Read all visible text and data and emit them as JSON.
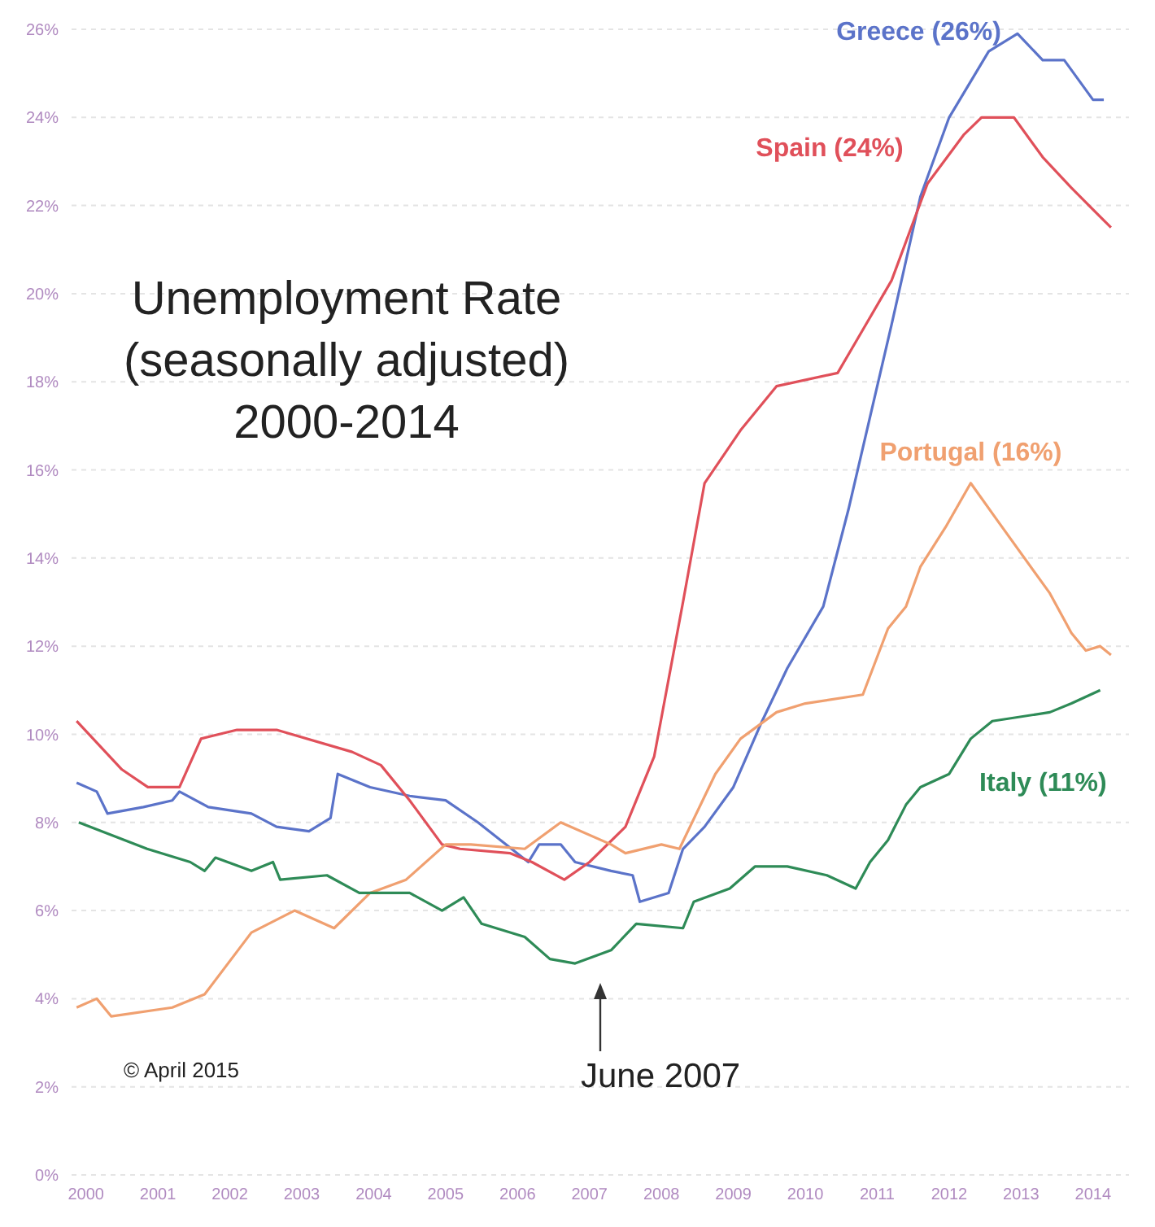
{
  "chart_data": {
    "type": "line",
    "title": "Unemployment Rate\n(seasonally adjusted)\n2000-2014",
    "xlim": [
      1999.8,
      2014.5
    ],
    "xticks": [
      2000,
      2001,
      2002,
      2003,
      2004,
      2005,
      2006,
      2007,
      2008,
      2009,
      2010,
      2011,
      2012,
      2013,
      2014
    ],
    "ylim": [
      0,
      26
    ],
    "yticks": [
      {
        "value": 0,
        "label": "0%"
      },
      {
        "value": 2,
        "label": "2%"
      },
      {
        "value": 4,
        "label": "4%"
      },
      {
        "value": 6,
        "label": "6%"
      },
      {
        "value": 8,
        "label": "8%"
      },
      {
        "value": 10,
        "label": "10%"
      },
      {
        "value": 12,
        "label": "12%"
      },
      {
        "value": 14,
        "label": "14%"
      },
      {
        "value": 16,
        "label": "16%"
      },
      {
        "value": 18,
        "label": "18%"
      },
      {
        "value": 20,
        "label": "20%"
      },
      {
        "value": 22,
        "label": "22%"
      },
      {
        "value": 24,
        "label": "24%"
      },
      {
        "value": 26,
        "label": "26%"
      }
    ],
    "grid": "y",
    "marker": "none",
    "line_style": "solid",
    "annotations": [
      "June 2007",
      "© April 2015"
    ],
    "series": [
      {
        "name": "Greece (26%)",
        "color": "#5b73c9",
        "x": [
          1999.87,
          2000.15,
          2000.3,
          2000.8,
          2001.2,
          2001.3,
          2001.7,
          2002.3,
          2002.65,
          2003.1,
          2003.4,
          2003.5,
          2003.95,
          2004.5,
          2005.0,
          2005.45,
          2006.15,
          2006.3,
          2006.6,
          2006.8,
          2007.3,
          2007.6,
          2007.7,
          2008.1,
          2008.3,
          2008.6,
          2009.0,
          2009.4,
          2009.75,
          2010.25,
          2010.6,
          2011.2,
          2011.6,
          2012.0,
          2012.55,
          2012.95,
          2013.3,
          2013.6,
          2014.0,
          2014.15
        ],
        "values": [
          8.9,
          8.7,
          8.2,
          8.35,
          8.5,
          8.7,
          8.35,
          8.2,
          7.9,
          7.8,
          8.1,
          9.1,
          8.8,
          8.6,
          8.5,
          8.0,
          7.1,
          7.5,
          7.5,
          7.1,
          6.9,
          6.8,
          6.2,
          6.4,
          7.4,
          7.9,
          8.8,
          10.3,
          11.5,
          12.9,
          15.1,
          19.3,
          22.2,
          24.0,
          25.5,
          25.9,
          25.3,
          25.3,
          24.4,
          24.4
        ]
      },
      {
        "name": "Spain (24%)",
        "color": "#e0505a",
        "x": [
          1999.87,
          2000.5,
          2000.86,
          2001.3,
          2001.6,
          2002.1,
          2002.65,
          2003.7,
          2004.1,
          2004.5,
          2004.95,
          2005.2,
          2005.9,
          2006.2,
          2006.65,
          2007.0,
          2007.5,
          2007.9,
          2008.3,
          2008.6,
          2009.1,
          2009.6,
          2010.45,
          2010.7,
          2011.2,
          2011.7,
          2012.2,
          2012.45,
          2012.9,
          2013.3,
          2013.7,
          2014.25
        ],
        "values": [
          10.3,
          9.2,
          8.8,
          8.8,
          9.9,
          10.1,
          10.1,
          9.6,
          9.3,
          8.5,
          7.5,
          7.4,
          7.3,
          7.1,
          6.7,
          7.1,
          7.9,
          9.5,
          13.0,
          15.7,
          16.9,
          17.9,
          18.2,
          18.9,
          20.3,
          22.5,
          23.6,
          24.0,
          24.0,
          23.1,
          22.4,
          21.5
        ]
      },
      {
        "name": "Portugal (16%)",
        "color": "#f0a070",
        "x": [
          1999.87,
          2000.15,
          2000.35,
          2001.2,
          2001.65,
          2002.3,
          2002.9,
          2003.45,
          2003.95,
          2004.45,
          2005.0,
          2005.35,
          2006.1,
          2006.6,
          2007.3,
          2007.5,
          2008.0,
          2008.25,
          2008.75,
          2009.1,
          2009.6,
          2010.0,
          2010.8,
          2011.15,
          2011.4,
          2011.6,
          2011.95,
          2012.3,
          2012.65,
          2013.4,
          2013.7,
          2013.9,
          2014.1,
          2014.25
        ],
        "values": [
          3.8,
          4.0,
          3.6,
          3.8,
          4.1,
          5.5,
          6.0,
          5.6,
          6.4,
          6.7,
          7.5,
          7.5,
          7.4,
          8.0,
          7.5,
          7.3,
          7.5,
          7.4,
          9.1,
          9.9,
          10.5,
          10.7,
          10.9,
          12.4,
          12.9,
          13.8,
          14.7,
          15.7,
          14.9,
          13.2,
          12.3,
          11.9,
          12.0,
          11.8
        ]
      },
      {
        "name": "Italy (11%)",
        "color": "#2e8b57",
        "x": [
          1999.9,
          2000.85,
          2001.45,
          2001.65,
          2001.8,
          2002.3,
          2002.6,
          2002.7,
          2003.35,
          2003.8,
          2004.5,
          2004.95,
          2005.25,
          2005.5,
          2006.1,
          2006.45,
          2006.8,
          2007.3,
          2007.65,
          2008.3,
          2008.45,
          2008.95,
          2009.3,
          2009.75,
          2010.3,
          2010.7,
          2010.9,
          2011.15,
          2011.4,
          2011.6,
          2012.0,
          2012.3,
          2012.6,
          2013.4,
          2013.7,
          2014.1
        ],
        "values": [
          8.0,
          7.4,
          7.1,
          6.9,
          7.2,
          6.9,
          7.1,
          6.7,
          6.8,
          6.4,
          6.4,
          6.0,
          6.3,
          5.7,
          5.4,
          4.9,
          4.8,
          5.1,
          5.7,
          5.6,
          6.2,
          6.5,
          7.0,
          7.0,
          6.8,
          6.5,
          7.1,
          7.6,
          8.4,
          8.8,
          9.1,
          9.9,
          10.3,
          10.5,
          10.7,
          11.0
        ]
      }
    ]
  }
}
